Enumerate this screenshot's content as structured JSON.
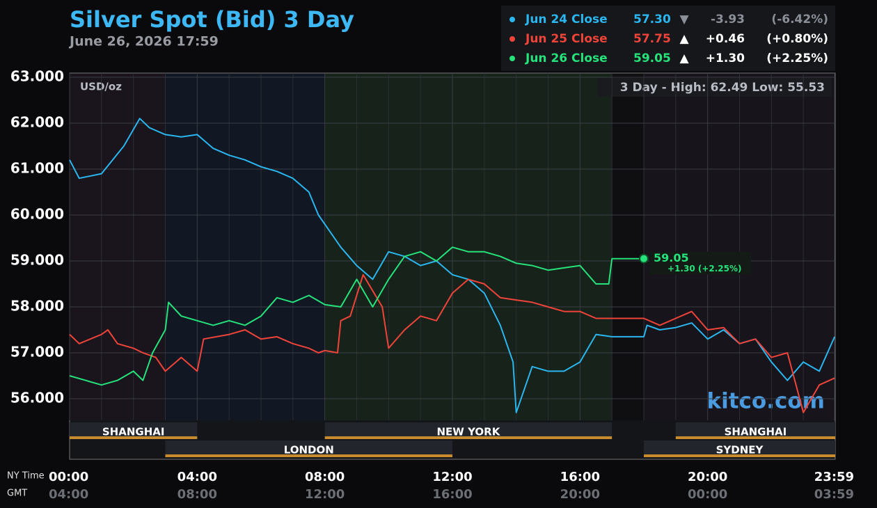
{
  "chart_data": {
    "type": "line",
    "title": "Silver Spot (Bid) 3 Day",
    "subtitle": "June 26, 2026 17:59",
    "unit_label": "USD/oz",
    "range_note": "3 Day - High: 62.49  Low: 55.53",
    "watermark": "kitco.com",
    "x_axis_label": "NY Time",
    "x2_axis_label": "GMT",
    "xlim": [
      0,
      24
    ],
    "xticks": [
      {
        "value": 0,
        "label": "00:00"
      },
      {
        "value": 4,
        "label": "04:00"
      },
      {
        "value": 8,
        "label": "08:00"
      },
      {
        "value": 12,
        "label": "12:00"
      },
      {
        "value": 16,
        "label": "16:00"
      },
      {
        "value": 20,
        "label": "20:00"
      },
      {
        "value": 23.98,
        "label": "23:59"
      }
    ],
    "x2_tick_labels": [
      "04:00",
      "08:00",
      "12:00",
      "16:00",
      "20:00",
      "00:00",
      "03:59"
    ],
    "x_minor_ticks": [
      1,
      2,
      3,
      5,
      6,
      7,
      9,
      10,
      11,
      13,
      14,
      15,
      17,
      18,
      19,
      21,
      22,
      23
    ],
    "ylim": [
      55.53,
      63.09
    ],
    "yticks": [
      {
        "value": 56,
        "label": "56.000"
      },
      {
        "value": 57,
        "label": "57.000"
      },
      {
        "value": 58,
        "label": "58.000"
      },
      {
        "value": 59,
        "label": "59.000"
      },
      {
        "value": 60,
        "label": "60.000"
      },
      {
        "value": 61,
        "label": "61.000"
      },
      {
        "value": 62,
        "label": "62.000"
      },
      {
        "value": 63,
        "label": "63.000"
      }
    ],
    "grid": true,
    "sessions": [
      {
        "name": "SHANGHAI",
        "start": 0,
        "end": 4,
        "row": 0
      },
      {
        "name": "NEW YORK",
        "start": 8,
        "end": 17,
        "row": 0
      },
      {
        "name": "SHANGHAI",
        "start": 19,
        "end": 24,
        "row": 0
      },
      {
        "name": "LONDON",
        "start": 3,
        "end": 12,
        "row": 1
      },
      {
        "name": "SYDNEY",
        "start": 18,
        "end": 24,
        "row": 1
      }
    ],
    "series": [
      {
        "name": "Jun 24 Close",
        "color": "#2ab6ef",
        "close_label": "57.30",
        "arrow": "▼",
        "change_label": "-3.93",
        "pct_label": "(-6.42%)",
        "legend_text_color": "#8a8f98",
        "x": [
          0,
          0.3,
          1,
          1.7,
          2.2,
          2.5,
          3,
          3.5,
          4,
          4.5,
          5,
          5.5,
          6,
          6.5,
          7,
          7.5,
          7.8,
          8,
          8.5,
          9,
          9.5,
          10,
          10.5,
          11,
          11.5,
          12,
          12.5,
          13,
          13.5,
          13.9,
          14,
          14.5,
          15,
          15.5,
          16,
          16.5,
          17,
          18,
          18.1,
          18.5,
          19,
          19.5,
          20,
          20.5,
          21,
          21.5,
          22,
          22.5,
          23,
          23.5,
          23.98
        ],
        "values": [
          61.2,
          60.8,
          60.9,
          61.5,
          62.1,
          61.9,
          61.75,
          61.7,
          61.75,
          61.45,
          61.3,
          61.2,
          61.05,
          60.95,
          60.8,
          60.5,
          60.0,
          59.8,
          59.3,
          58.9,
          58.6,
          59.2,
          59.1,
          58.9,
          59.0,
          58.7,
          58.6,
          58.3,
          57.6,
          56.8,
          55.7,
          56.7,
          56.6,
          56.6,
          56.8,
          57.4,
          57.35,
          57.35,
          57.6,
          57.5,
          57.55,
          57.65,
          57.3,
          57.5,
          57.2,
          57.3,
          56.8,
          56.4,
          56.8,
          56.6,
          57.35
        ]
      },
      {
        "name": "Jun 25 Close",
        "color": "#f0443a",
        "close_label": "57.75",
        "arrow": "▲",
        "change_label": "+0.46",
        "pct_label": "(+0.80%)",
        "legend_text_color": "#ffffff",
        "x": [
          0,
          0.3,
          1,
          1.2,
          1.5,
          2,
          2.3,
          2.7,
          3,
          3.5,
          4,
          4.2,
          5,
          5.5,
          6,
          6.5,
          7,
          7.5,
          7.8,
          8,
          8.4,
          8.5,
          8.8,
          9.2,
          9.8,
          10,
          10.5,
          11,
          11.5,
          12,
          12.5,
          13,
          13.5,
          14,
          14.5,
          15,
          15.5,
          16,
          16.5,
          17,
          18,
          18.5,
          19,
          19.5,
          20,
          20.5,
          21,
          21.5,
          22,
          22.5,
          23,
          23.5,
          23.98
        ],
        "values": [
          57.4,
          57.2,
          57.4,
          57.5,
          57.2,
          57.1,
          57.0,
          56.9,
          56.6,
          56.9,
          56.6,
          57.3,
          57.4,
          57.5,
          57.3,
          57.35,
          57.2,
          57.1,
          57.0,
          57.05,
          57.0,
          57.7,
          57.8,
          58.7,
          58.0,
          57.1,
          57.5,
          57.8,
          57.7,
          58.3,
          58.6,
          58.5,
          58.2,
          58.15,
          58.1,
          58.0,
          57.9,
          57.9,
          57.75,
          57.75,
          57.75,
          57.6,
          57.75,
          57.9,
          57.5,
          57.55,
          57.2,
          57.3,
          56.9,
          57.0,
          55.7,
          56.3,
          56.45
        ]
      },
      {
        "name": "Jun 26 Close",
        "color": "#25e37a",
        "close_label": "59.05",
        "arrow": "▲",
        "change_label": "+1.30",
        "pct_label": "(+2.25%)",
        "legend_text_color": "#ffffff",
        "last_label": "59.05",
        "last_change_label": "+1.30 (+2.25%)",
        "x": [
          0,
          0.5,
          1,
          1.5,
          2,
          2.3,
          2.6,
          3,
          3.1,
          3.5,
          4,
          4.5,
          5,
          5.5,
          6,
          6.5,
          7,
          7.5,
          8,
          8.5,
          9,
          9.5,
          10,
          10.5,
          11,
          11.5,
          12,
          12.5,
          13,
          13.5,
          14,
          14.5,
          15,
          15.5,
          16,
          16.5,
          16.9,
          17,
          18
        ],
        "values": [
          56.5,
          56.4,
          56.3,
          56.4,
          56.6,
          56.4,
          57.0,
          57.5,
          58.1,
          57.8,
          57.7,
          57.6,
          57.7,
          57.6,
          57.8,
          58.2,
          58.1,
          58.25,
          58.05,
          58.0,
          58.6,
          58.0,
          58.6,
          59.1,
          59.2,
          59.0,
          59.3,
          59.2,
          59.2,
          59.1,
          58.95,
          58.9,
          58.8,
          58.85,
          58.9,
          58.5,
          58.5,
          59.05,
          59.05
        ]
      }
    ]
  }
}
